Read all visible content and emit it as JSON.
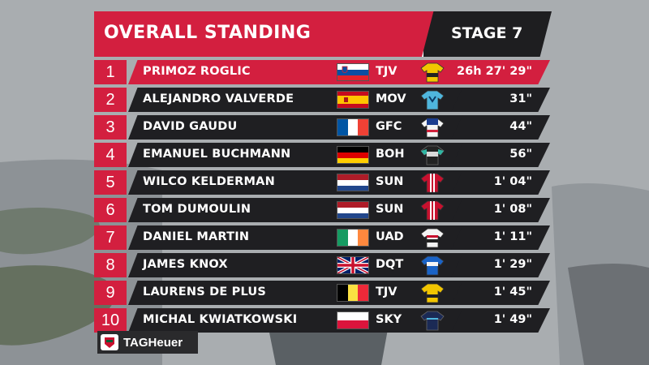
{
  "header": {
    "title": "OVERALL STANDING",
    "stage": "STAGE 7"
  },
  "colors": {
    "accent_red": "#d31f3f",
    "panel_dark": "#1f1f22"
  },
  "standings": [
    {
      "rank": "1",
      "name": "PRIMOZ ROGLIC",
      "country": "slovenia",
      "team": "TJV",
      "jersey": "leader-yellow",
      "gap": "26h 27' 29\""
    },
    {
      "rank": "2",
      "name": "ALEJANDRO VALVERDE",
      "country": "spain",
      "team": "MOV",
      "jersey": "movistar-blue",
      "gap": "31\""
    },
    {
      "rank": "3",
      "name": "DAVID GAUDU",
      "country": "france",
      "team": "GFC",
      "jersey": "groupama-white",
      "gap": "44\""
    },
    {
      "rank": "4",
      "name": "EMANUEL BUCHMANN",
      "country": "germany",
      "team": "BOH",
      "jersey": "bora-black",
      "gap": "56\""
    },
    {
      "rank": "5",
      "name": "WILCO KELDERMAN",
      "country": "netherlands",
      "team": "SUN",
      "jersey": "sunweb-red",
      "gap": "1' 04\""
    },
    {
      "rank": "6",
      "name": "TOM DUMOULIN",
      "country": "netherlands",
      "team": "SUN",
      "jersey": "sunweb-red",
      "gap": "1' 08\""
    },
    {
      "rank": "7",
      "name": "DANIEL MARTIN",
      "country": "ireland",
      "team": "UAD",
      "jersey": "uae-white",
      "gap": "1' 11\""
    },
    {
      "rank": "8",
      "name": "JAMES KNOX",
      "country": "great-britain",
      "team": "DQT",
      "jersey": "deceuninck-blue",
      "gap": "1' 29\""
    },
    {
      "rank": "9",
      "name": "LAURENS DE PLUS",
      "country": "belgium",
      "team": "TJV",
      "jersey": "jumbo-yellow",
      "gap": "1' 45\""
    },
    {
      "rank": "10",
      "name": "MICHAL KWIATKOWSKI",
      "country": "poland",
      "team": "SKY",
      "jersey": "sky-navy",
      "gap": "1' 49\""
    }
  ],
  "sponsor": {
    "name": "TAGHeuer"
  }
}
